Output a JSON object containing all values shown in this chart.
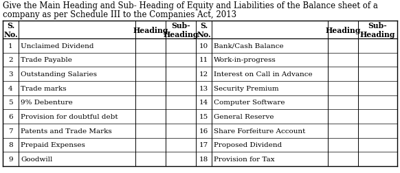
{
  "title_line1": "Give the Main Heading and Sub- Heading of Equity and Liabilities of the Balance sheet of a",
  "title_line2": "company as per Schedule III to the Companies Act, 2013",
  "left_rows": [
    [
      "1",
      "Unclaimed Dividend"
    ],
    [
      "2",
      "Trade Payable"
    ],
    [
      "3",
      "Outstanding Salaries"
    ],
    [
      "4",
      "Trade marks"
    ],
    [
      "5",
      "9% Debenture"
    ],
    [
      "6",
      "Provision for doubtful debt"
    ],
    [
      "7",
      "Patents and Trade Marks"
    ],
    [
      "8",
      "Prepaid Expenses"
    ],
    [
      "9",
      "Goodwill"
    ]
  ],
  "right_rows": [
    [
      "10",
      "Bank/Cash Balance"
    ],
    [
      "11",
      "Work-in-progress"
    ],
    [
      "12",
      "Interest on Call in Advance"
    ],
    [
      "13",
      "Security Premium"
    ],
    [
      "14",
      "Computer Software"
    ],
    [
      "15",
      "General Reserve"
    ],
    [
      "16",
      "Share Forfeiture Account"
    ],
    [
      "17",
      "Proposed Dividend"
    ],
    [
      "18",
      "Provision for Tax"
    ]
  ],
  "bg_color": "#ffffff",
  "text_color": "#000000",
  "title_fontsize": 8.5,
  "cell_fontsize": 7.5,
  "header_fontsize": 7.8
}
